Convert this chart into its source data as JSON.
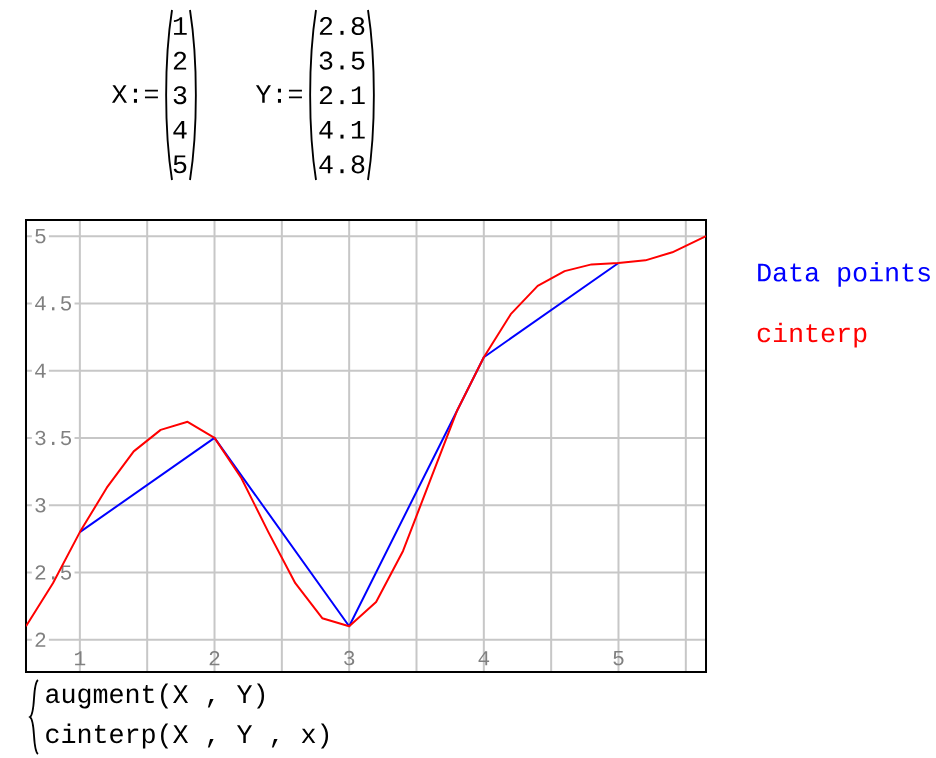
{
  "chart_data": {
    "type": "line",
    "x": [
      1,
      2,
      3,
      4,
      5
    ],
    "series": [
      {
        "name": "Data points",
        "color": "#0000ff",
        "values": [
          2.8,
          3.5,
          2.1,
          4.1,
          4.8
        ]
      },
      {
        "name": "cinterp",
        "color": "#ff0000",
        "x": [
          0.6,
          0.8,
          1.0,
          1.2,
          1.4,
          1.6,
          1.8,
          2.0,
          2.2,
          2.4,
          2.6,
          2.8,
          3.0,
          3.2,
          3.4,
          3.6,
          3.8,
          4.0,
          4.2,
          4.4,
          4.6,
          4.8,
          5.0,
          5.2,
          5.4,
          5.65
        ],
        "values": [
          2.1,
          2.42,
          2.8,
          3.13,
          3.4,
          3.56,
          3.62,
          3.5,
          3.2,
          2.8,
          2.42,
          2.16,
          2.1,
          2.28,
          2.66,
          3.18,
          3.7,
          4.1,
          4.42,
          4.63,
          4.74,
          4.79,
          4.8,
          4.82,
          4.88,
          5.0
        ]
      }
    ],
    "xlim": [
      0.6,
      5.65
    ],
    "ylim": [
      1.76,
      5.12
    ],
    "xticks": [
      1,
      {
        "value": 1.5,
        "label": null
      },
      2,
      {
        "value": 2.5,
        "label": null
      },
      3,
      {
        "value": 3.5,
        "label": null
      },
      4,
      {
        "value": 4.5,
        "label": null
      },
      5,
      {
        "value": 5.5,
        "label": null
      }
    ],
    "yticks": [
      2,
      2.5,
      3,
      3.5,
      4,
      4.5,
      5
    ],
    "grid": true,
    "legend": "top right",
    "marker": "none",
    "line_style": "solid",
    "annotations": [
      "X:=",
      "1",
      "2",
      "3",
      "4",
      "5",
      "Y:=",
      "2.8",
      "3.5",
      "2.1",
      "4.1",
      "4.8",
      "augment(X , Y)",
      "cinterp(X , Y , x)"
    ]
  }
}
